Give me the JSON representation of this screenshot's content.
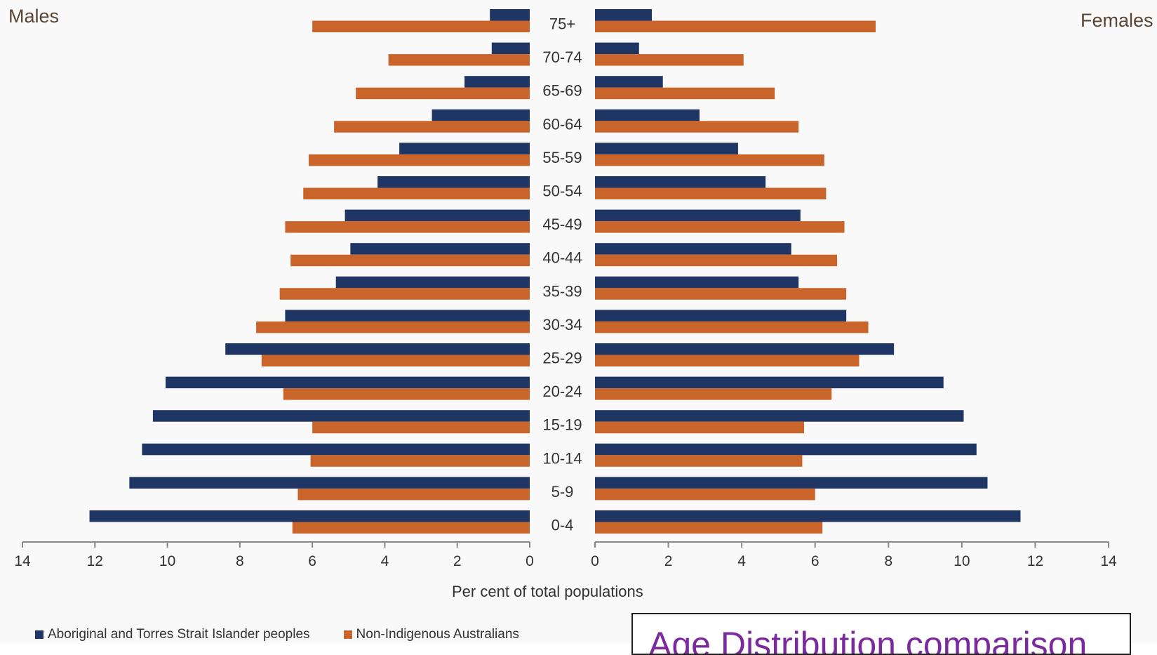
{
  "panel_labels": {
    "left": "Males",
    "right": "Females"
  },
  "axis_title": "Per cent of total populations",
  "legend": [
    {
      "label": "Aboriginal and Torres Strait Islander peoples",
      "color": "#1f3564"
    },
    {
      "label": "Non-Indigenous Australians",
      "color": "#c9642a"
    }
  ],
  "caption": "Age Distribution comparison",
  "colors": {
    "indigenous": "#1f3564",
    "non_indigenous": "#c9642a",
    "axis": "#888888",
    "background": "#f9f9f9"
  },
  "chart_data": {
    "type": "bar",
    "orientation": "horizontal-pyramid",
    "categories": [
      "75+",
      "70-74",
      "65-69",
      "60-64",
      "55-59",
      "50-54",
      "45-49",
      "40-44",
      "35-39",
      "30-34",
      "25-29",
      "20-24",
      "15-19",
      "10-14",
      "5-9",
      "0-4"
    ],
    "males": {
      "series": [
        {
          "name": "Aboriginal and Torres Strait Islander peoples",
          "values": [
            1.1,
            1.05,
            1.8,
            2.7,
            3.6,
            4.2,
            5.1,
            4.95,
            5.35,
            6.75,
            8.4,
            10.05,
            10.4,
            10.7,
            11.05,
            12.15
          ]
        },
        {
          "name": "Non-Indigenous Australians",
          "values": [
            6.0,
            3.9,
            4.8,
            5.4,
            6.1,
            6.25,
            6.75,
            6.6,
            6.9,
            7.55,
            7.4,
            6.8,
            6.0,
            6.05,
            6.4,
            6.55
          ]
        }
      ]
    },
    "females": {
      "series": [
        {
          "name": "Aboriginal and Torres Strait Islander peoples",
          "values": [
            1.55,
            1.2,
            1.85,
            2.85,
            3.9,
            4.65,
            5.6,
            5.35,
            5.55,
            6.85,
            8.15,
            9.5,
            10.05,
            10.4,
            10.7,
            11.6
          ]
        },
        {
          "name": "Non-Indigenous Australians",
          "values": [
            7.65,
            4.05,
            4.9,
            5.55,
            6.25,
            6.3,
            6.8,
            6.6,
            6.85,
            7.45,
            7.2,
            6.45,
            5.7,
            5.65,
            6.0,
            6.2
          ]
        }
      ]
    },
    "x_ticks": [
      14,
      12,
      10,
      8,
      6,
      4,
      2,
      0
    ],
    "x_ticks_right": [
      0,
      2,
      4,
      6,
      8,
      10,
      12,
      14
    ],
    "xlim": [
      0,
      14
    ],
    "xlabel": "Per cent of total populations",
    "grid": false,
    "legend_position": "bottom-left"
  }
}
